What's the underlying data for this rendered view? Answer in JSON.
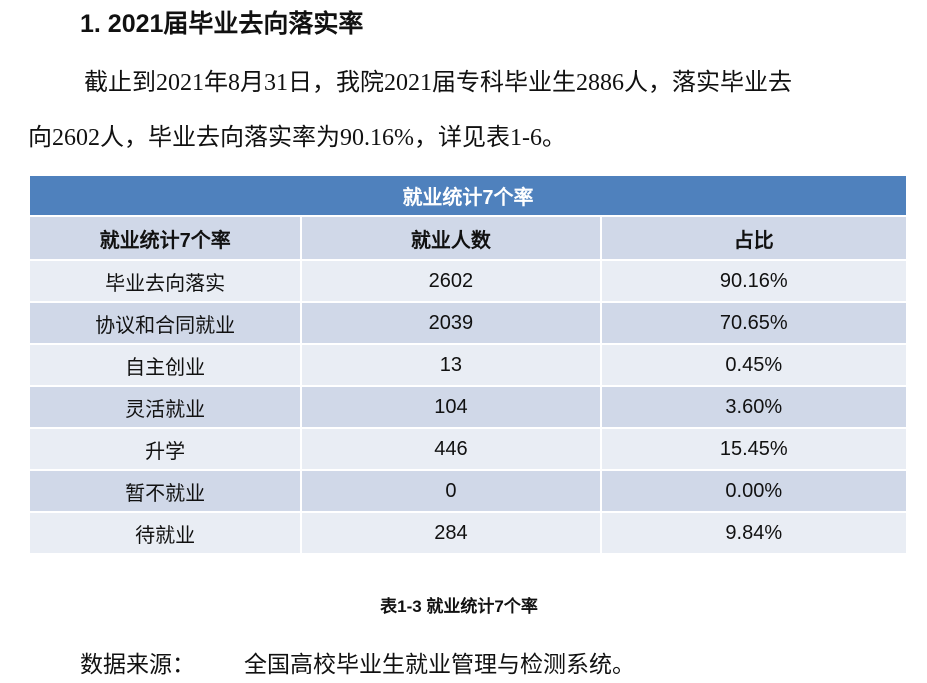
{
  "heading": "1. 2021届毕业去向落实率",
  "paragraph": {
    "lines": [
      "截止到2021年8月31日，我院2021届专科毕业生2886人，落实毕业去",
      "向2602人，毕业去向落实率为90.16%，详见表1-6。"
    ]
  },
  "table": {
    "title": "就业统计7个率",
    "columns": [
      "就业统计7个率",
      "就业人数",
      "占比"
    ],
    "rows": [
      [
        "毕业去向落实",
        "2602",
        "90.16%"
      ],
      [
        "协议和合同就业",
        "2039",
        "70.65%"
      ],
      [
        "自主创业",
        "13",
        "0.45%"
      ],
      [
        "灵活就业",
        "104",
        "3.60%"
      ],
      [
        "升学",
        "446",
        "15.45%"
      ],
      [
        "暂不就业",
        "0",
        "0.00%"
      ],
      [
        "待就业",
        "284",
        "9.84%"
      ]
    ],
    "caption": "表1-3 就业统计7个率"
  },
  "source": {
    "label": "数据来源：",
    "text": "全国高校毕业生就业管理与检测系统。"
  }
}
